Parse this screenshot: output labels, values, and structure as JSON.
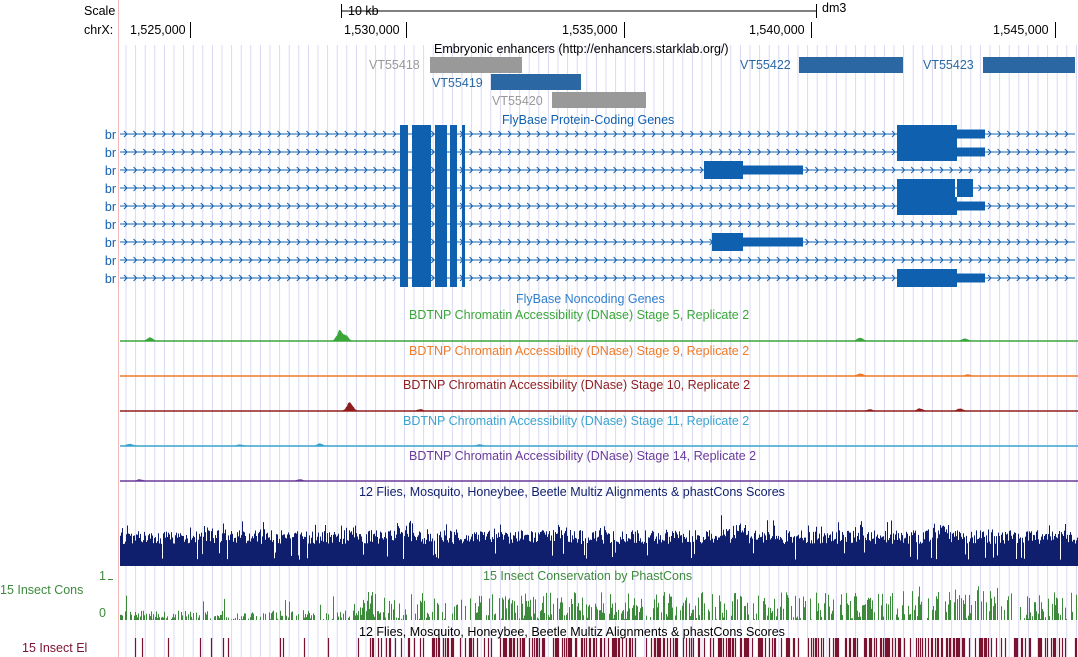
{
  "ruler": {
    "scale_label": "Scale",
    "chrom_label": "chrX:",
    "scalebar_label": "10 kb",
    "assembly": "dm3",
    "ticks": [
      "1,525,000",
      "1,530,000",
      "1,535,000",
      "1,540,000",
      "1,545,000"
    ]
  },
  "tracks": {
    "enhancers": {
      "title": "Embryonic enhancers (http://enhancers.starklab.org/)",
      "items": [
        {
          "name": "VT55418",
          "color": "#999999"
        },
        {
          "name": "VT55419",
          "color": "#2b68a3"
        },
        {
          "name": "VT55420",
          "color": "#999999"
        },
        {
          "name": "VT55422",
          "color": "#2b68a3"
        },
        {
          "name": "VT55423",
          "color": "#2b68a3"
        }
      ]
    },
    "genes": {
      "title": "FlyBase Protein-Coding Genes",
      "color": "#1060b0",
      "labels": [
        "br",
        "br",
        "br",
        "br",
        "br",
        "br",
        "br",
        "br",
        "br"
      ]
    },
    "noncoding": {
      "title": "FlyBase Noncoding Genes",
      "color": "#2f7fcf"
    },
    "dnase": [
      {
        "title": "BDTNP Chromatin Accessibility (DNase) Stage 5, Replicate 2",
        "color": "#3aa63a"
      },
      {
        "title": "BDTNP Chromatin Accessibility (DNase) Stage 9, Replicate 2",
        "color": "#ee7a2a"
      },
      {
        "title": "BDTNP Chromatin Accessibility (DNase) Stage 10, Replicate 2",
        "color": "#8f1d1d"
      },
      {
        "title": "BDTNP Chromatin Accessibility (DNase) Stage 11, Replicate 2",
        "color": "#3aa3d0"
      },
      {
        "title": "BDTNP Chromatin Accessibility (DNase) Stage 14, Replicate 2",
        "color": "#6a3a9a"
      }
    ],
    "multiz": {
      "title": "12 Flies, Mosquito, Honeybee, Beetle Multiz Alignments & phastCons Scores",
      "color": "#0f1f6e"
    },
    "phastcons": {
      "title": "15 Insect Conservation by PhastCons",
      "side_label": "15 Insect Cons",
      "ymax": "1",
      "ymin": "0",
      "color": "#3d8a3d"
    },
    "elements": {
      "title": "12 Flies, Mosquito, Honeybee, Beetle Multiz Alignments & phastCons Scores",
      "side_label": "15 Insect El",
      "color": "#7b1230"
    }
  }
}
